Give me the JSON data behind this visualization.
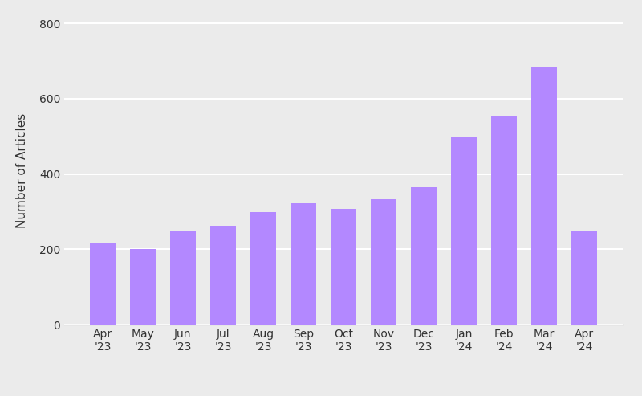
{
  "categories": [
    "Apr\n'23",
    "May\n'23",
    "Jun\n'23",
    "Jul\n'23",
    "Aug\n'23",
    "Sep\n'23",
    "Oct\n'23",
    "Nov\n'23",
    "Dec\n'23",
    "Jan\n'24",
    "Feb\n'24",
    "Mar\n'24",
    "Apr\n'24"
  ],
  "values": [
    215,
    200,
    248,
    262,
    300,
    323,
    308,
    333,
    365,
    500,
    552,
    685,
    250
  ],
  "bar_color": "#b388ff",
  "ylabel": "Number of Articles",
  "ylim": [
    0,
    820
  ],
  "yticks": [
    0,
    200,
    400,
    600,
    800
  ],
  "background_color": "#ebebeb",
  "grid_color": "#ffffff",
  "bar_width": 0.65,
  "tick_color": "#333333",
  "label_fontsize": 11,
  "tick_fontsize": 10
}
